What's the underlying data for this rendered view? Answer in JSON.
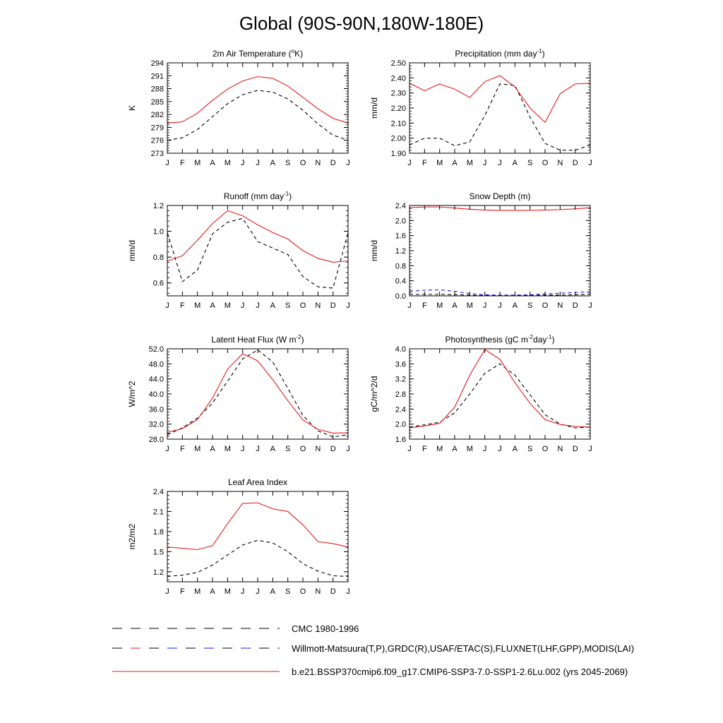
{
  "title": "Global (90S-90N,180W-180E)",
  "colors": {
    "model": "#e41a1c",
    "cmc": "#000000",
    "obs": "#1a1aff",
    "axis": "#000000"
  },
  "legend": [
    {
      "label": "CMC 1980-1996",
      "style": "dash-black"
    },
    {
      "label": "Willmott-Matsuura(T,P),GRDC(R),USAF/ETAC(S),FLUXNET(LHF,GPP),MODIS(LAI)",
      "style": "dash-multi"
    },
    {
      "label": "b.e21.BSSP370cmip6.f09_g17.CMIP6-SSP3-7.0-SSP1-2.6Lu.002 (yrs 2045-2069)",
      "style": "solid-red"
    }
  ],
  "chart_data": [
    {
      "type": "line",
      "title": "2m Air Temperature (",
      "title_sup": "o",
      "title_after": "K)",
      "ylabel": "K",
      "x": [
        "J",
        "F",
        "M",
        "A",
        "M",
        "J",
        "J",
        "A",
        "S",
        "O",
        "N",
        "D",
        "J"
      ],
      "ylim": [
        273,
        294
      ],
      "yticks": [
        "273",
        "276",
        "279",
        "282",
        "285",
        "288",
        "291",
        "294"
      ],
      "series": [
        {
          "name": "CMC 1980-1996",
          "style": "dash",
          "color": "#000000",
          "values": [
            276.0,
            276.6,
            278.5,
            281.5,
            284.5,
            286.6,
            287.6,
            287.2,
            285.6,
            283.0,
            279.8,
            277.2,
            276.0
          ]
        },
        {
          "name": "b.e21.BSSP370cmip6.f09_g17.CMIP6-SSP3-7.0-SSP1-2.6Lu.002 (yrs 2045-2069)",
          "style": "solid",
          "color": "#e41a1c",
          "values": [
            280.0,
            280.3,
            282.3,
            285.3,
            287.9,
            289.8,
            290.8,
            290.4,
            288.6,
            286.0,
            283.3,
            281.1,
            280.0
          ]
        }
      ]
    },
    {
      "type": "line",
      "title": "Precipitation (mm day",
      "title_sup": "-1",
      "title_after": ")",
      "ylabel": "mm/d",
      "x": [
        "J",
        "F",
        "M",
        "A",
        "M",
        "J",
        "J",
        "A",
        "S",
        "O",
        "N",
        "D",
        "J"
      ],
      "ylim": [
        1.9,
        2.5
      ],
      "yticks": [
        "1.90",
        "2.00",
        "2.10",
        "2.20",
        "2.30",
        "2.40",
        "2.50"
      ],
      "series": [
        {
          "name": "CMC 1980-1996",
          "style": "dash",
          "color": "#000000",
          "values": [
            1.955,
            2.0,
            2.0,
            1.95,
            1.975,
            2.15,
            2.36,
            2.35,
            2.14,
            1.965,
            1.92,
            1.92,
            1.955
          ]
        },
        {
          "name": "b.e21.BSSP370cmip6.f09_g17.CMIP6-SSP3-7.0-SSP1-2.6Lu.002 (yrs 2045-2069)",
          "style": "solid",
          "color": "#e41a1c",
          "values": [
            2.365,
            2.315,
            2.36,
            2.325,
            2.27,
            2.375,
            2.415,
            2.34,
            2.2,
            2.105,
            2.295,
            2.36,
            2.365
          ]
        }
      ]
    },
    {
      "type": "line",
      "title": "Runoff (mm day",
      "title_sup": "-1",
      "title_after": ")",
      "ylabel": "mm/d",
      "x": [
        "J",
        "F",
        "M",
        "A",
        "M",
        "J",
        "J",
        "A",
        "S",
        "O",
        "N",
        "D",
        "J"
      ],
      "ylim": [
        0.5,
        1.2
      ],
      "yticks": [
        "0.6",
        "0.8",
        "1.0",
        "1.2"
      ],
      "series": [
        {
          "name": "CMC 1980-1996",
          "style": "dash",
          "color": "#000000",
          "values": [
            0.99,
            0.61,
            0.7,
            0.98,
            1.07,
            1.1,
            0.92,
            0.87,
            0.82,
            0.65,
            0.57,
            0.56,
            0.99
          ]
        },
        {
          "name": "b.e21.BSSP370cmip6.f09_g17.CMIP6-SSP3-7.0-SSP1-2.6Lu.002 (yrs 2045-2069)",
          "style": "solid",
          "color": "#e41a1c",
          "values": [
            0.77,
            0.81,
            0.93,
            1.06,
            1.16,
            1.12,
            1.05,
            0.99,
            0.94,
            0.85,
            0.79,
            0.76,
            0.77
          ]
        }
      ]
    },
    {
      "type": "line",
      "title": "Snow Depth (m)",
      "title_sup": "",
      "title_after": "",
      "ylabel": "mm/d",
      "x": [
        "J",
        "F",
        "M",
        "A",
        "M",
        "J",
        "J",
        "A",
        "S",
        "O",
        "N",
        "D",
        "J"
      ],
      "ylim": [
        0,
        2.4
      ],
      "yticks": [
        "0.0",
        "0.4",
        "0.8",
        "1.2",
        "1.6",
        "2.0",
        "2.4"
      ],
      "series": [
        {
          "name": "CMC 1980-1996",
          "style": "dash",
          "color": "#000000",
          "values": [
            0.04,
            0.04,
            0.04,
            0.03,
            0.02,
            0.01,
            0.01,
            0.01,
            0.01,
            0.02,
            0.02,
            0.03,
            0.04
          ]
        },
        {
          "name": "USAF/ETAC(S)",
          "style": "dash",
          "color": "#1a1aff",
          "values": [
            0.12,
            0.15,
            0.16,
            0.12,
            0.06,
            0.03,
            0.02,
            0.02,
            0.03,
            0.05,
            0.07,
            0.09,
            0.11
          ]
        },
        {
          "name": "b.e21.BSSP370cmip6.f09_g17.CMIP6-SSP3-7.0-SSP1-2.6Lu.002 (yrs 2045-2069)",
          "style": "solid",
          "color": "#e41a1c",
          "values": [
            2.34,
            2.36,
            2.36,
            2.33,
            2.3,
            2.28,
            2.27,
            2.27,
            2.27,
            2.28,
            2.29,
            2.31,
            2.34
          ]
        }
      ]
    },
    {
      "type": "line",
      "title": "Latent Heat Flux (W m",
      "title_sup": "-2",
      "title_after": ")",
      "ylabel": "W/m^2",
      "x": [
        "J",
        "F",
        "M",
        "A",
        "M",
        "J",
        "J",
        "A",
        "S",
        "O",
        "N",
        "D",
        "J"
      ],
      "ylim": [
        28,
        52
      ],
      "yticks": [
        "28.0",
        "32.0",
        "36.0",
        "40.0",
        "44.0",
        "48.0",
        "52.0"
      ],
      "series": [
        {
          "name": "CMC 1980-1996",
          "style": "dash",
          "color": "#000000",
          "values": [
            29.2,
            31.0,
            33.6,
            37.6,
            43.4,
            49.3,
            51.7,
            48.5,
            41.5,
            34.3,
            30.2,
            28.6,
            29.2
          ]
        },
        {
          "name": "b.e21.BSSP370cmip6.f09_g17.CMIP6-SSP3-7.0-SSP1-2.6Lu.002 (yrs 2045-2069)",
          "style": "solid",
          "color": "#e41a1c",
          "values": [
            29.8,
            30.8,
            33.2,
            38.9,
            46.6,
            50.7,
            48.8,
            43.8,
            38.2,
            33.1,
            30.6,
            29.6,
            29.7
          ]
        }
      ]
    },
    {
      "type": "line",
      "title": "Photosynthesis (gC m",
      "title_sup": "-2",
      "title_after": "day",
      "title_sup2": "-1",
      "title_after2": ")",
      "ylabel": "gC/m^2/d",
      "x": [
        "J",
        "F",
        "M",
        "A",
        "M",
        "J",
        "J",
        "A",
        "S",
        "O",
        "N",
        "D",
        "J"
      ],
      "ylim": [
        1.6,
        4.0
      ],
      "yticks": [
        "1.6",
        "2.0",
        "2.4",
        "2.8",
        "3.2",
        "3.6",
        "4.0"
      ],
      "series": [
        {
          "name": "CMC 1980-1996",
          "style": "dash",
          "color": "#000000",
          "values": [
            1.92,
            1.98,
            2.05,
            2.3,
            2.8,
            3.35,
            3.6,
            3.3,
            2.78,
            2.25,
            2.0,
            1.9,
            1.92
          ]
        },
        {
          "name": "b.e21.BSSP370cmip6.f09_g17.CMIP6-SSP3-7.0-SSP1-2.6Lu.002 (yrs 2045-2069)",
          "style": "solid",
          "color": "#e41a1c",
          "values": [
            1.9,
            1.95,
            2.02,
            2.45,
            3.3,
            3.98,
            3.72,
            3.1,
            2.55,
            2.12,
            1.99,
            1.94,
            1.92
          ]
        }
      ]
    },
    {
      "type": "line",
      "title": "Leaf Area Index",
      "title_sup": "",
      "title_after": "",
      "ylabel": "m2/m2",
      "x": [
        "J",
        "F",
        "M",
        "A",
        "M",
        "J",
        "J",
        "A",
        "S",
        "O",
        "N",
        "D",
        "J"
      ],
      "ylim": [
        1.05,
        2.4
      ],
      "yticks": [
        "1.2",
        "1.5",
        "1.8",
        "2.1",
        "2.4"
      ],
      "series": [
        {
          "name": "CMC 1980-1996",
          "style": "dash",
          "color": "#000000",
          "values": [
            1.13,
            1.15,
            1.19,
            1.3,
            1.45,
            1.6,
            1.67,
            1.63,
            1.5,
            1.32,
            1.21,
            1.14,
            1.13
          ]
        },
        {
          "name": "b.e21.BSSP370cmip6.f09_g17.CMIP6-SSP3-7.0-SSP1-2.6Lu.002 (yrs 2045-2069)",
          "style": "solid",
          "color": "#e41a1c",
          "values": [
            1.57,
            1.55,
            1.53,
            1.59,
            1.92,
            2.22,
            2.23,
            2.14,
            2.1,
            1.9,
            1.65,
            1.62,
            1.57
          ]
        }
      ]
    }
  ]
}
